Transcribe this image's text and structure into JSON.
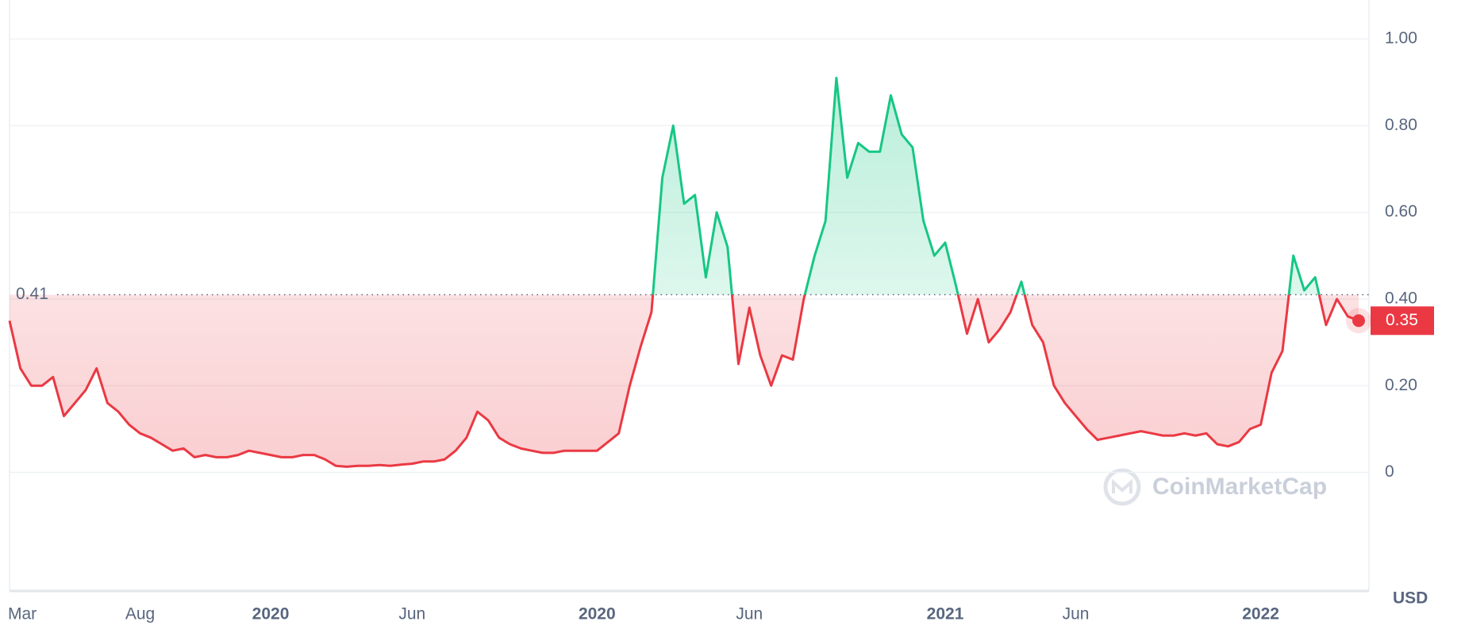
{
  "chart_data": {
    "type": "line",
    "values": [
      0.35,
      0.24,
      0.2,
      0.2,
      0.22,
      0.13,
      0.16,
      0.19,
      0.24,
      0.16,
      0.14,
      0.11,
      0.09,
      0.08,
      0.065,
      0.05,
      0.055,
      0.035,
      0.04,
      0.035,
      0.035,
      0.04,
      0.05,
      0.045,
      0.04,
      0.035,
      0.035,
      0.04,
      0.04,
      0.03,
      0.015,
      0.013,
      0.015,
      0.015,
      0.017,
      0.015,
      0.018,
      0.02,
      0.025,
      0.025,
      0.03,
      0.05,
      0.08,
      0.14,
      0.12,
      0.08,
      0.065,
      0.055,
      0.05,
      0.045,
      0.045,
      0.05,
      0.05,
      0.05,
      0.05,
      0.07,
      0.09,
      0.2,
      0.29,
      0.37,
      0.68,
      0.8,
      0.62,
      0.64,
      0.45,
      0.6,
      0.52,
      0.25,
      0.38,
      0.27,
      0.2,
      0.27,
      0.26,
      0.4,
      0.5,
      0.58,
      0.91,
      0.68,
      0.76,
      0.74,
      0.74,
      0.87,
      0.78,
      0.75,
      0.58,
      0.5,
      0.53,
      0.43,
      0.32,
      0.4,
      0.3,
      0.33,
      0.37,
      0.44,
      0.34,
      0.3,
      0.2,
      0.16,
      0.13,
      0.1,
      0.075,
      0.08,
      0.085,
      0.09,
      0.095,
      0.09,
      0.085,
      0.085,
      0.09,
      0.085,
      0.09,
      0.065,
      0.06,
      0.07,
      0.1,
      0.11,
      0.23,
      0.28,
      0.5,
      0.42,
      0.45,
      0.34,
      0.4,
      0.36,
      0.35
    ],
    "xticks": [
      {
        "value": 1,
        "label": "Mar"
      },
      {
        "value": 12,
        "label": "Aug"
      },
      {
        "value": 24,
        "label": "2020"
      },
      {
        "value": 37,
        "label": "Jun"
      },
      {
        "value": 54,
        "label": "2020"
      },
      {
        "value": 68,
        "label": "Jun"
      },
      {
        "value": 86,
        "label": "2021"
      },
      {
        "value": 98,
        "label": "Jun"
      },
      {
        "value": 115,
        "label": "2022"
      }
    ],
    "ylim": [
      -0.27,
      1.09
    ],
    "yticks": [
      0,
      {
        "value": 0.2,
        "label": "0.20"
      },
      {
        "value": 0.4,
        "label": "0.40"
      },
      {
        "value": 0.6,
        "label": "0.60"
      },
      {
        "value": 0.8,
        "label": "0.80"
      },
      {
        "value": 1,
        "label": "1.00"
      }
    ],
    "baseline": 0.41,
    "last_price": 0.35,
    "currency": "USD",
    "watermark": "CoinMarketCap",
    "up_color": "#16c784",
    "down_color": "#ea3943",
    "grid": true
  }
}
